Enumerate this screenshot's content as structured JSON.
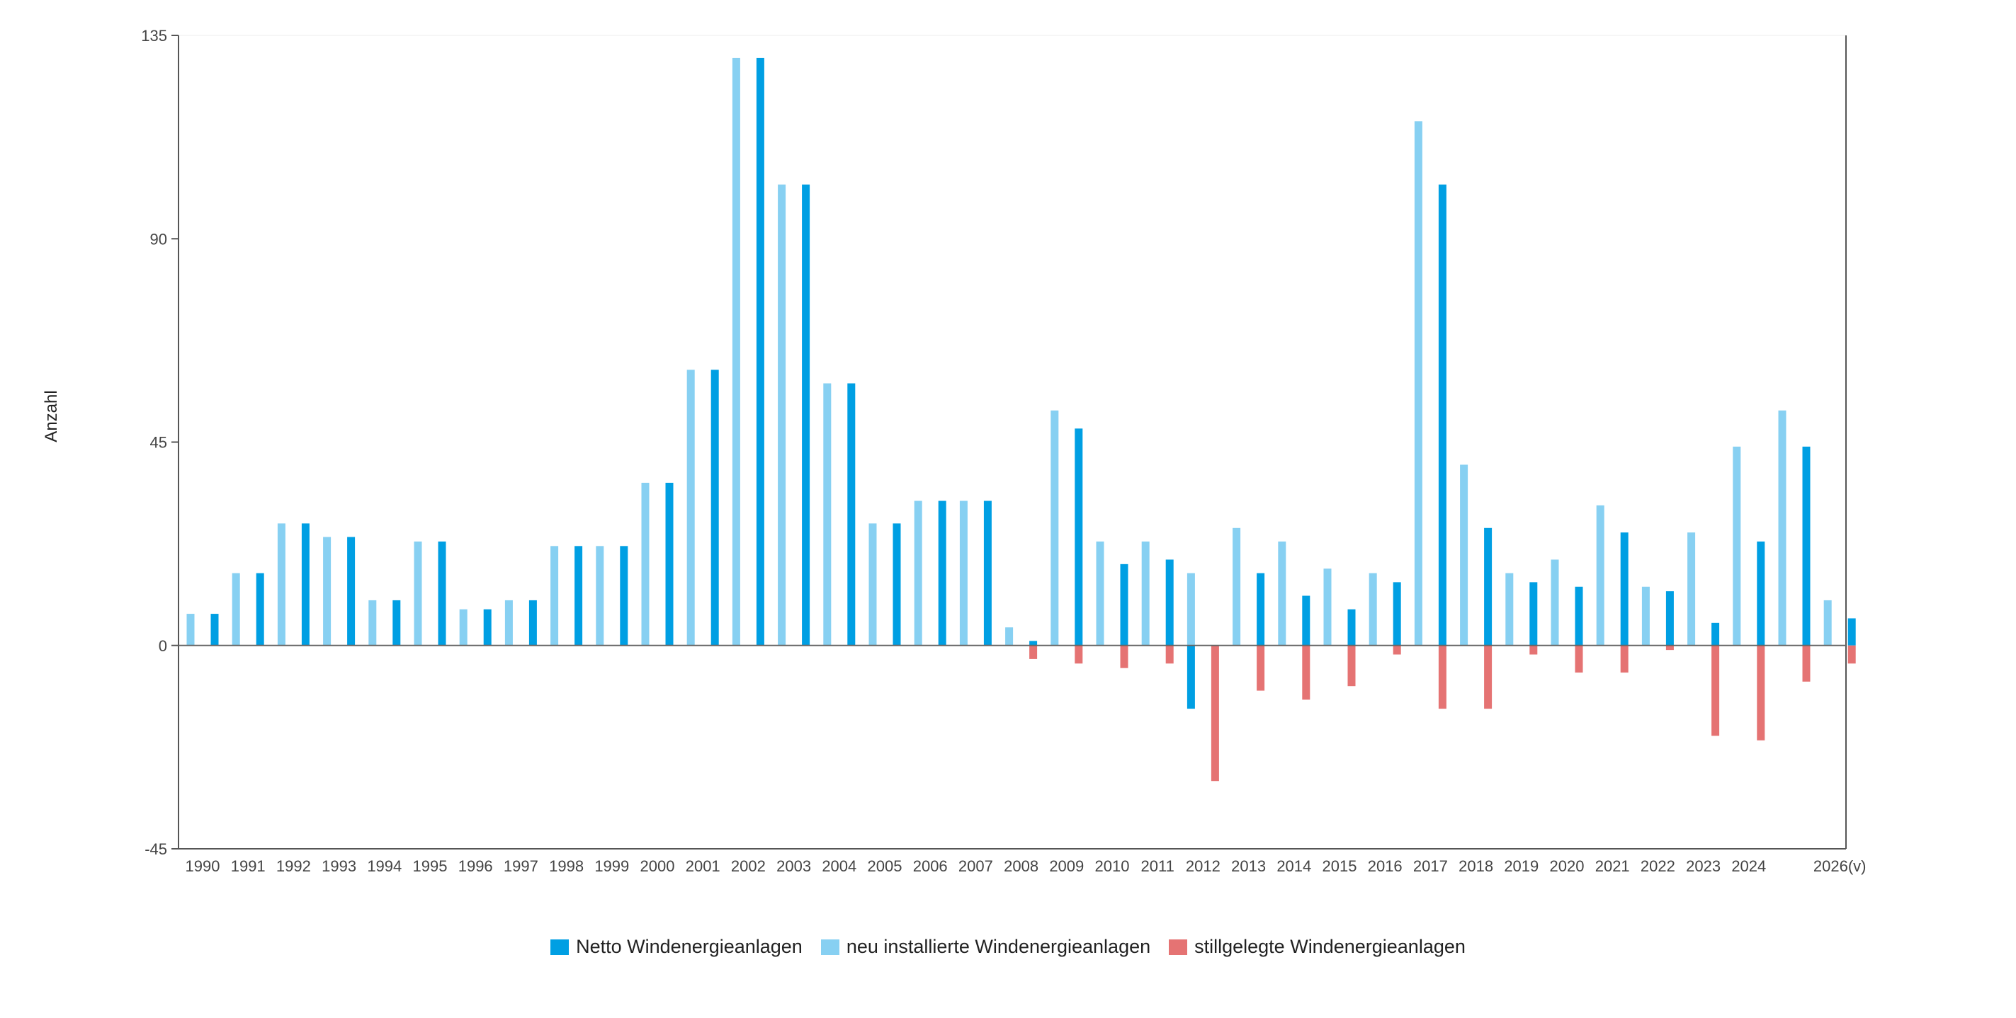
{
  "chart_data": {
    "type": "bar",
    "ylabel": "Anzahl",
    "xlabel": "",
    "ylim": [
      -45,
      135
    ],
    "yticks": [
      -45,
      0,
      45,
      90,
      135
    ],
    "grid": false,
    "legend_position": "bottom",
    "x_labels": [
      "1990",
      "1991",
      "1992",
      "1993",
      "1994",
      "1995",
      "1996",
      "1997",
      "1998",
      "1999",
      "2000",
      "2001",
      "2002",
      "2003",
      "2004",
      "2005",
      "2006",
      "2007",
      "2008",
      "2009",
      "2010",
      "2011",
      "2012",
      "2013",
      "2014",
      "2015",
      "2016",
      "2017",
      "2018",
      "2019",
      "2020",
      "2021",
      "2022",
      "2023",
      "2024",
      "",
      "2026(v)"
    ],
    "series": [
      {
        "name": "Netto Windenergieanlagen",
        "color": "#009fe3",
        "values": [
          7,
          16,
          27,
          24,
          10,
          23,
          8,
          10,
          22,
          22,
          36,
          61,
          130,
          102,
          58,
          27,
          32,
          32,
          1,
          48,
          18,
          19,
          -14,
          16,
          11,
          8,
          14,
          102,
          26,
          14,
          13,
          25,
          12,
          5,
          23,
          44,
          6
        ]
      },
      {
        "name": "neu installierte Windenergieanlagen",
        "color": "#87d0f2",
        "values": [
          7,
          16,
          27,
          24,
          10,
          23,
          8,
          10,
          22,
          22,
          36,
          61,
          130,
          102,
          58,
          27,
          32,
          32,
          4,
          52,
          23,
          23,
          16,
          26,
          23,
          17,
          16,
          116,
          40,
          16,
          19,
          31,
          13,
          25,
          44,
          52,
          10
        ]
      },
      {
        "name": "stillgelegte Windenergieanlagen",
        "color": "#e57373",
        "values": [
          0,
          0,
          0,
          0,
          0,
          0,
          0,
          0,
          0,
          0,
          0,
          0,
          0,
          0,
          0,
          0,
          0,
          0,
          -3,
          -4,
          -5,
          -4,
          -30,
          -10,
          -12,
          -9,
          -2,
          -14,
          -14,
          -2,
          -6,
          -6,
          -1,
          -20,
          -21,
          -8,
          -4
        ]
      }
    ]
  }
}
